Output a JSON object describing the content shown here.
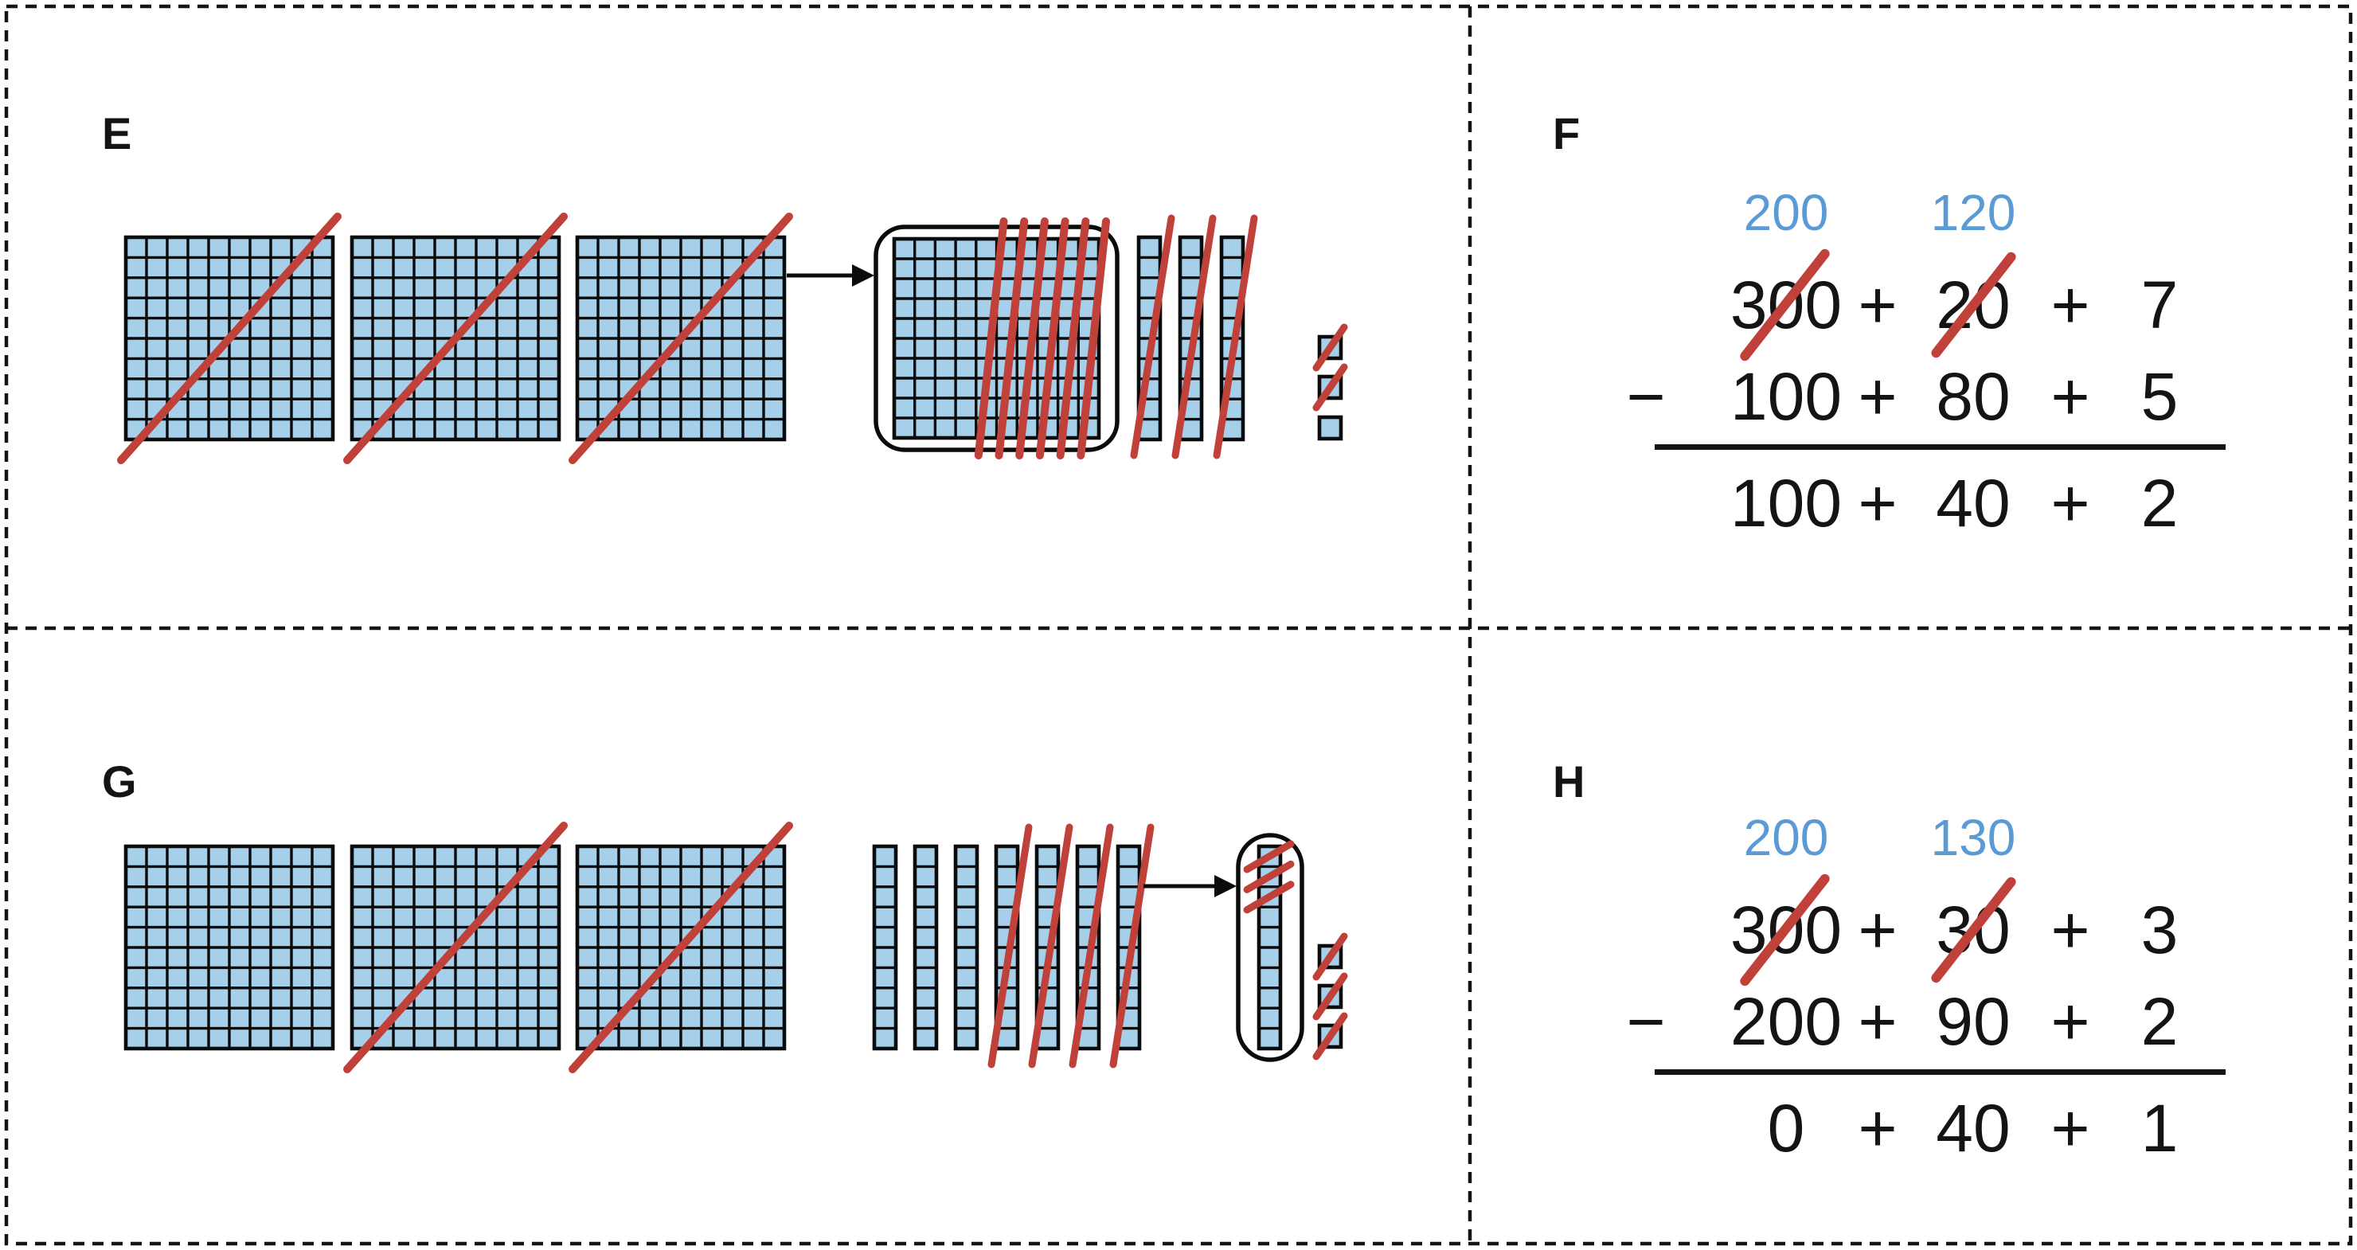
{
  "colors": {
    "block_fill": "#a6cfe9",
    "block_stroke": "#0b0b0b",
    "slash_red": "#c0413a",
    "regroup_blue": "#5b9bd5",
    "text": "#141414",
    "border": "#141414",
    "circle_fill": "#ffffff"
  },
  "panels": {
    "E": {
      "label": "E",
      "type": "base-ten-blocks",
      "blocks": {
        "hundreds": [
          {
            "slashed": true
          },
          {
            "slashed": true
          },
          {
            "slashed": true
          }
        ],
        "exchange": {
          "arrow": true,
          "kind": "hundred-as-ten-tens",
          "columns": 10,
          "slashed_columns": 6
        },
        "tens": [
          {
            "slashed": true
          },
          {
            "slashed": true
          },
          {
            "slashed": true
          }
        ],
        "ones": [
          {
            "slashed": true
          },
          {
            "slashed": true
          },
          {
            "slashed": false
          }
        ]
      }
    },
    "F": {
      "label": "F",
      "type": "expanded-form-subtraction",
      "equation": {
        "minus_sign": "−",
        "plus_sign": "+",
        "regrouped": [
          {
            "text": "200"
          },
          {
            "text": "120"
          }
        ],
        "minuend": [
          {
            "text": "300",
            "crossed": true
          },
          {
            "text": "20",
            "crossed": true
          },
          {
            "text": "7",
            "crossed": false
          }
        ],
        "subtrahend": [
          {
            "text": "100"
          },
          {
            "text": "80"
          },
          {
            "text": "5"
          }
        ],
        "difference": [
          {
            "text": "100"
          },
          {
            "text": "40"
          },
          {
            "text": "2"
          }
        ]
      }
    },
    "G": {
      "label": "G",
      "type": "base-ten-blocks",
      "blocks": {
        "hundreds": [
          {
            "slashed": false
          },
          {
            "slashed": true
          },
          {
            "slashed": true
          }
        ],
        "tens": [
          {
            "slashed": false
          },
          {
            "slashed": false
          },
          {
            "slashed": false
          },
          {
            "slashed": true
          },
          {
            "slashed": true
          },
          {
            "slashed": true
          },
          {
            "slashed": true
          }
        ],
        "exchange": {
          "arrow": true,
          "kind": "ten-as-ten-ones",
          "cells": 10,
          "slashed_cells": 3
        },
        "ones": [
          {
            "slashed": true
          },
          {
            "slashed": true
          },
          {
            "slashed": true
          }
        ]
      }
    },
    "H": {
      "label": "H",
      "type": "expanded-form-subtraction",
      "equation": {
        "minus_sign": "−",
        "plus_sign": "+",
        "regrouped": [
          {
            "text": "200"
          },
          {
            "text": "130"
          }
        ],
        "minuend": [
          {
            "text": "300",
            "crossed": true
          },
          {
            "text": "30",
            "crossed": true
          },
          {
            "text": "3",
            "crossed": false
          }
        ],
        "subtrahend": [
          {
            "text": "200"
          },
          {
            "text": "90"
          },
          {
            "text": "2"
          }
        ],
        "difference": [
          {
            "text": "0"
          },
          {
            "text": "40"
          },
          {
            "text": "1"
          }
        ]
      }
    }
  }
}
